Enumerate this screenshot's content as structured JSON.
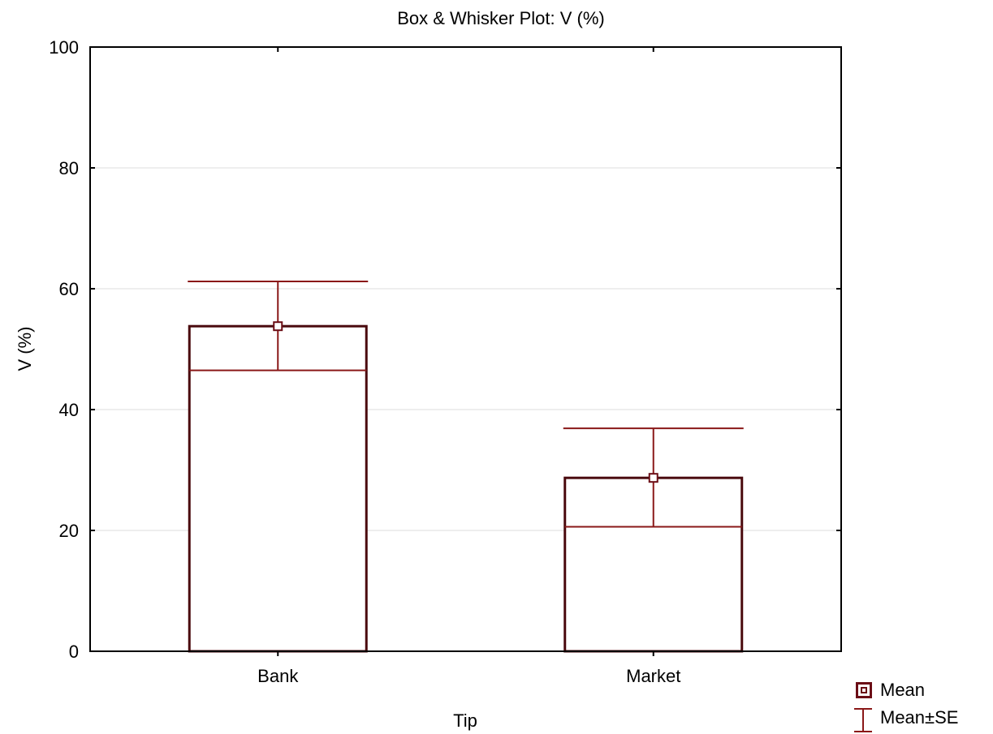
{
  "chart_data": {
    "type": "bar",
    "title": "Box & Whisker Plot: V (%)",
    "xlabel": "Tip",
    "ylabel": "V (%)",
    "categories": [
      "Bank",
      "Market"
    ],
    "series": [
      {
        "name": "Mean",
        "values": [
          53.8,
          28.7
        ]
      }
    ],
    "mean_minus_se": [
      46.5,
      20.6
    ],
    "mean_plus_se": [
      61.2,
      36.9
    ],
    "ylim": [
      0,
      100
    ],
    "yticks": [
      "0",
      "20",
      "40",
      "60",
      "80",
      "100"
    ],
    "grid": true,
    "legend_position": "bottom-right",
    "legend": [
      {
        "label": "Mean",
        "symbol": "mean-icon"
      },
      {
        "label": "Mean±SE",
        "symbol": "error-bar-icon"
      }
    ],
    "colors": {
      "box": "#4a0a0e",
      "mean": "#6b0e16",
      "whisker": "#8a1818",
      "grid": "#dcdcdc"
    }
  }
}
